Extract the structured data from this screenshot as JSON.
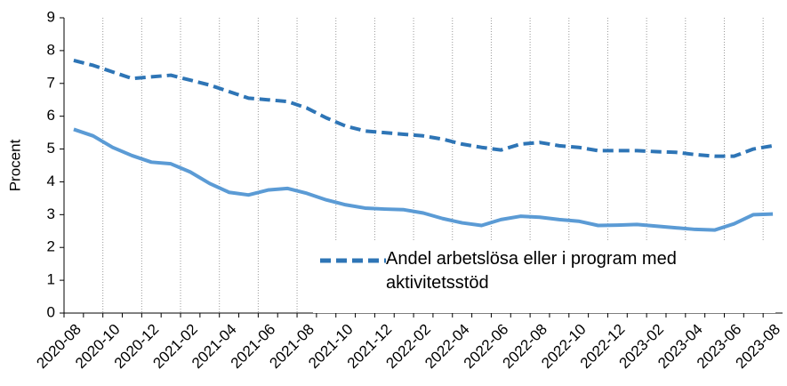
{
  "chart_data": {
    "type": "line",
    "y_label": "Procent",
    "categories": [
      "2020-08",
      null,
      "2020-10",
      null,
      "2020-12",
      null,
      "2021-02",
      null,
      "2021-04",
      null,
      "2021-06",
      null,
      "2021-08",
      null,
      "2021-10",
      null,
      "2021-12",
      null,
      "2022-02",
      null,
      "2022-04",
      null,
      "2022-06",
      null,
      "2022-08",
      null,
      "2022-10",
      null,
      "2022-12",
      null,
      "2023-02",
      null,
      "2023-04",
      null,
      "2023-06",
      null,
      "2023-08"
    ],
    "series": [
      {
        "name": "Andel arbetslösa eller i program med aktivitetsstöd",
        "color": "#2e75b6",
        "dashed": true,
        "values": [
          7.7,
          7.55,
          7.35,
          7.15,
          7.2,
          7.25,
          7.1,
          6.95,
          6.75,
          6.55,
          6.5,
          6.45,
          6.25,
          5.95,
          5.7,
          5.55,
          5.5,
          5.45,
          5.4,
          5.3,
          5.15,
          5.05,
          4.97,
          5.15,
          5.2,
          5.1,
          5.05,
          4.95,
          4.95,
          4.95,
          4.92,
          4.9,
          4.83,
          4.78,
          4.78,
          5.0,
          5.1
        ]
      },
      {
        "color": "#5b9bd5",
        "dashed": false,
        "values": [
          5.6,
          5.4,
          5.05,
          4.8,
          4.6,
          4.55,
          4.3,
          3.95,
          3.68,
          3.6,
          3.75,
          3.8,
          3.65,
          3.45,
          3.3,
          3.2,
          3.17,
          3.15,
          3.05,
          2.88,
          2.75,
          2.67,
          2.85,
          2.95,
          2.92,
          2.85,
          2.8,
          2.67,
          2.68,
          2.7,
          2.65,
          2.6,
          2.55,
          2.53,
          2.72,
          3.0,
          3.02
        ]
      }
    ],
    "ylim": [
      0,
      9
    ],
    "yticks": [
      0,
      1,
      2,
      3,
      4,
      5,
      6,
      7,
      8,
      9
    ],
    "grid": true
  }
}
